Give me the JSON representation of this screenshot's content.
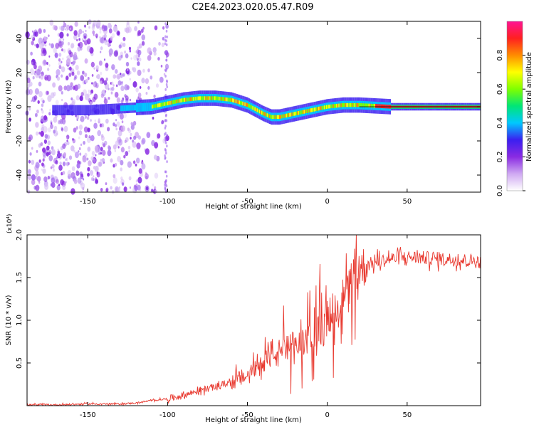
{
  "title": "C2E4.2023.020.05.47.R09",
  "colors": {
    "line": "#e8392f",
    "axis": "#000000",
    "colorbar": [
      "#cfa9f2",
      "#8a2be2",
      "#3b1ff0",
      "#00c8ff",
      "#00e676",
      "#7fff00",
      "#ffff00",
      "#ff8c00",
      "#ff2020",
      "#ff1493"
    ]
  },
  "chart_data": [
    {
      "type": "heatmap",
      "xlabel": "Height of straight line (km)",
      "ylabel": "Frequency (Hz)",
      "xlim": [
        -188,
        96
      ],
      "ylim": [
        -50,
        50
      ],
      "x_ticks": [
        -150,
        -100,
        -50,
        0,
        50
      ],
      "x_tick_labels": [
        "-150",
        "-100",
        "-50",
        "0",
        "50"
      ],
      "y_ticks": [
        -40,
        -20,
        0,
        20,
        40
      ],
      "y_tick_labels": [
        "-40",
        "-20",
        "0",
        "20",
        "40"
      ],
      "colorbar": {
        "label": "Normalized spectral amplitude",
        "range": [
          0,
          1
        ],
        "ticks": [
          0.0,
          0.2,
          0.4,
          0.6,
          0.8
        ],
        "tick_labels": [
          "0.0",
          "0.2",
          "0.4",
          "0.6",
          "0.8"
        ]
      },
      "ridge": {
        "x": [
          -170,
          -150,
          -130,
          -110,
          -100,
          -90,
          -80,
          -70,
          -60,
          -50,
          -40,
          -35,
          -30,
          -20,
          -10,
          0,
          10,
          20,
          30,
          40,
          60,
          80,
          96
        ],
        "frequency": [
          -2,
          -2,
          -1,
          0,
          2,
          4,
          5,
          5,
          4,
          1,
          -4,
          -6,
          -6,
          -4,
          -2,
          0,
          1,
          1,
          0.5,
          0,
          0,
          0,
          0
        ]
      },
      "noise_region_x": [
        -188,
        -100
      ]
    },
    {
      "type": "line",
      "xlabel": "Height of straight line (km)",
      "ylabel": "SNR (10 * v/v)",
      "y_scale_label": "(x10⁴)",
      "xlim": [
        -188,
        96
      ],
      "ylim": [
        0,
        2.0
      ],
      "x_ticks": [
        -150,
        -100,
        -50,
        0,
        50
      ],
      "x_tick_labels": [
        "-150",
        "-100",
        "-50",
        "0",
        "50"
      ],
      "y_ticks": [
        0.5,
        1.0,
        1.5,
        2.0
      ],
      "y_tick_labels": [
        "0.5",
        "1.0",
        "1.5",
        "2.0"
      ],
      "series": [
        {
          "x": [
            -188,
            -170,
            -150,
            -130,
            -120,
            -110,
            -100,
            -90,
            -80,
            -70,
            -60,
            -50,
            -45,
            -40,
            -35,
            -30,
            -25,
            -20,
            -15,
            -10,
            -5,
            0,
            5,
            10,
            15,
            20,
            25,
            30,
            40,
            50,
            60,
            70,
            80,
            90,
            96
          ],
          "y": [
            0.01,
            0.01,
            0.02,
            0.02,
            0.03,
            0.06,
            0.08,
            0.12,
            0.18,
            0.22,
            0.28,
            0.35,
            0.45,
            0.55,
            0.62,
            0.6,
            0.66,
            0.7,
            0.75,
            0.82,
            0.9,
            1.0,
            1.1,
            1.25,
            1.45,
            1.6,
            1.65,
            1.68,
            1.72,
            1.74,
            1.73,
            1.72,
            1.71,
            1.7,
            1.68
          ]
        }
      ]
    }
  ]
}
